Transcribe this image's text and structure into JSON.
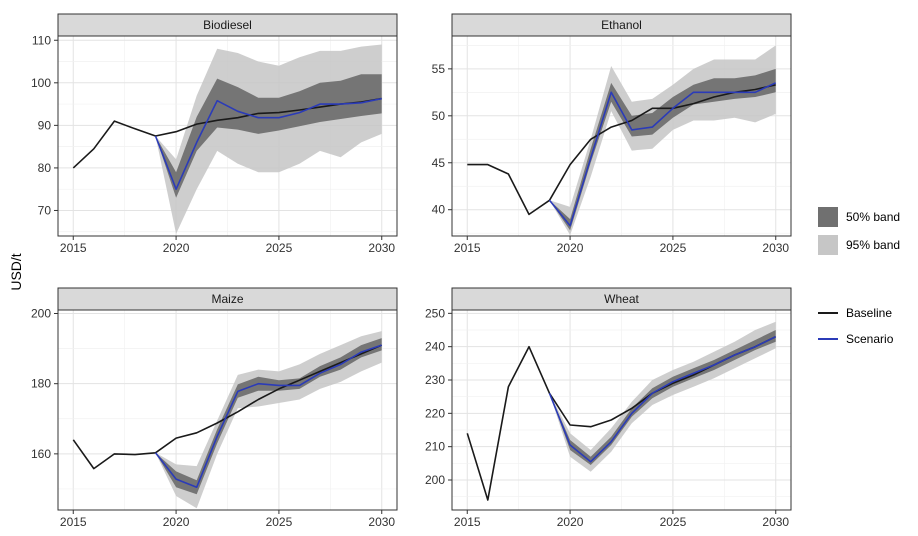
{
  "figure": {
    "y_axis_label": "USD/t",
    "x_ticks": [
      "2015",
      "2020",
      "2025",
      "2030"
    ]
  },
  "legend": {
    "bands": [
      {
        "label": "50% band",
        "color": "#707070"
      },
      {
        "label": "95% band",
        "color": "#c6c6c6"
      }
    ],
    "lines": [
      {
        "label": "Baseline",
        "color": "#1a1a1a"
      },
      {
        "label": "Scenario",
        "color": "#2b3bb8"
      }
    ]
  },
  "chart_data": [
    {
      "type": "line",
      "title": "Biodiesel",
      "x": [
        2015,
        2016,
        2017,
        2018,
        2019,
        2020,
        2021,
        2022,
        2023,
        2024,
        2025,
        2026,
        2027,
        2028,
        2029,
        2030
      ],
      "xlim": [
        2015,
        2030
      ],
      "ylim": [
        64,
        111
      ],
      "yticks": [
        70,
        80,
        90,
        100,
        110
      ],
      "band_start": 2019,
      "series": [
        {
          "name": "Baseline",
          "values": [
            80,
            84.5,
            91,
            89.2,
            87.5,
            88.5,
            90.3,
            91.2,
            91.8,
            92.8,
            93,
            93.6,
            94.3,
            95,
            95.5,
            96.3
          ]
        },
        {
          "name": "Scenario",
          "values": [
            null,
            null,
            null,
            null,
            87.5,
            75,
            86,
            95.8,
            93.3,
            91.8,
            91.8,
            93,
            95,
            95,
            95.3,
            96.3
          ]
        }
      ],
      "band50": {
        "lower": [
          87.5,
          73,
          84,
          89.5,
          89,
          88,
          88.8,
          89.8,
          90.8,
          91.5,
          92.2,
          92.8
        ],
        "upper": [
          87.5,
          79,
          92,
          101,
          99,
          96.5,
          96.5,
          98,
          100,
          100.5,
          102,
          102
        ]
      },
      "band95": {
        "lower": [
          87.5,
          64.5,
          75,
          84,
          81,
          79,
          79,
          81,
          84,
          82.5,
          86,
          88
        ],
        "upper": [
          87.5,
          82,
          97,
          108,
          107,
          105,
          104,
          106,
          107.5,
          107.5,
          108.5,
          109
        ]
      }
    },
    {
      "type": "line",
      "title": "Ethanol",
      "x": [
        2015,
        2016,
        2017,
        2018,
        2019,
        2020,
        2021,
        2022,
        2023,
        2024,
        2025,
        2026,
        2027,
        2028,
        2029,
        2030
      ],
      "xlim": [
        2015,
        2030
      ],
      "ylim": [
        37.2,
        58.5
      ],
      "yticks": [
        40,
        45,
        50,
        55
      ],
      "band_start": 2019,
      "series": [
        {
          "name": "Baseline",
          "values": [
            44.8,
            44.8,
            43.8,
            39.5,
            41,
            44.8,
            47.5,
            48.8,
            49.5,
            50.8,
            50.8,
            51.3,
            52,
            52.5,
            52.8,
            53.3
          ]
        },
        {
          "name": "Scenario",
          "values": [
            null,
            null,
            null,
            null,
            41,
            38.3,
            45.5,
            52.5,
            48.5,
            48.8,
            50.8,
            52.5,
            52.5,
            52.5,
            52.5,
            53.5
          ]
        }
      ],
      "band50": {
        "lower": [
          41,
          37.8,
          45,
          51.5,
          47.8,
          48,
          49.8,
          51.2,
          51.5,
          51.8,
          52,
          52.5
        ],
        "upper": [
          41,
          39,
          46.5,
          53.5,
          50,
          50.3,
          52,
          53.3,
          54,
          54,
          54.3,
          55
        ]
      },
      "band95": {
        "lower": [
          41,
          37.3,
          43.5,
          50.5,
          46.3,
          46.5,
          48.5,
          49.5,
          49.5,
          49.8,
          49.3,
          50.2
        ],
        "upper": [
          41,
          40.3,
          47.5,
          55.3,
          51.5,
          51.8,
          53.3,
          55,
          56,
          56,
          56,
          57.5
        ]
      }
    },
    {
      "type": "line",
      "title": "Maize",
      "x": [
        2015,
        2016,
        2017,
        2018,
        2019,
        2020,
        2021,
        2022,
        2023,
        2024,
        2025,
        2026,
        2027,
        2028,
        2029,
        2030
      ],
      "xlim": [
        2015,
        2030
      ],
      "ylim": [
        144,
        201
      ],
      "yticks": [
        160,
        180,
        200
      ],
      "band_start": 2019,
      "series": [
        {
          "name": "Baseline",
          "values": [
            164,
            155.8,
            160,
            159.8,
            160.3,
            164.5,
            166,
            168.8,
            172,
            175.5,
            178.5,
            181,
            183.5,
            186,
            188.5,
            191
          ]
        },
        {
          "name": "Scenario",
          "values": [
            null,
            null,
            null,
            null,
            160.3,
            152.8,
            150.5,
            165,
            177.8,
            180,
            179.5,
            179.5,
            183,
            185.5,
            189,
            191
          ]
        }
      ],
      "band50": {
        "lower": [
          160.3,
          150.5,
          148.5,
          163,
          176,
          178,
          178,
          178.5,
          182,
          184,
          187.5,
          189.5
        ],
        "upper": [
          160.3,
          155,
          152.5,
          167,
          179.8,
          182,
          181,
          181.5,
          185,
          187.5,
          191,
          193
        ]
      },
      "band95": {
        "lower": [
          160.3,
          148,
          144.5,
          160,
          173,
          173.5,
          174.5,
          175.5,
          178.5,
          180.5,
          183.5,
          186
        ],
        "upper": [
          160.3,
          157,
          156.5,
          169.5,
          182.5,
          184,
          183.5,
          185.5,
          188.5,
          191,
          193.5,
          195
        ]
      }
    },
    {
      "type": "line",
      "title": "Wheat",
      "x": [
        2015,
        2016,
        2017,
        2018,
        2019,
        2020,
        2021,
        2022,
        2023,
        2024,
        2025,
        2026,
        2027,
        2028,
        2029,
        2030
      ],
      "xlim": [
        2015,
        2030
      ],
      "ylim": [
        191,
        251
      ],
      "yticks": [
        200,
        210,
        220,
        230,
        240,
        250
      ],
      "band_start": 2019,
      "series": [
        {
          "name": "Baseline",
          "values": [
            214,
            194,
            228,
            240,
            226,
            216.5,
            216,
            218,
            221.5,
            226,
            229,
            231.5,
            234.5,
            237.5,
            240,
            243
          ]
        },
        {
          "name": "Scenario",
          "values": [
            null,
            null,
            null,
            null,
            226,
            210.5,
            205.5,
            211.5,
            220,
            226,
            229.5,
            232,
            234.5,
            237.5,
            240,
            243
          ]
        }
      ],
      "band50": {
        "lower": [
          226,
          209,
          204.5,
          210.5,
          219,
          224.5,
          228,
          230.5,
          233,
          236,
          239,
          241.5
        ],
        "upper": [
          226,
          212,
          207,
          213,
          221.5,
          227.5,
          231,
          233.5,
          236,
          239,
          242,
          245
        ]
      },
      "band95": {
        "lower": [
          226,
          207,
          202.5,
          208.5,
          217,
          222.5,
          225.5,
          228,
          230.5,
          233.5,
          236.5,
          239.5
        ],
        "upper": [
          226,
          214,
          209,
          215.5,
          223.5,
          230,
          233,
          235.5,
          238.5,
          241.5,
          245,
          247.5
        ]
      }
    }
  ]
}
